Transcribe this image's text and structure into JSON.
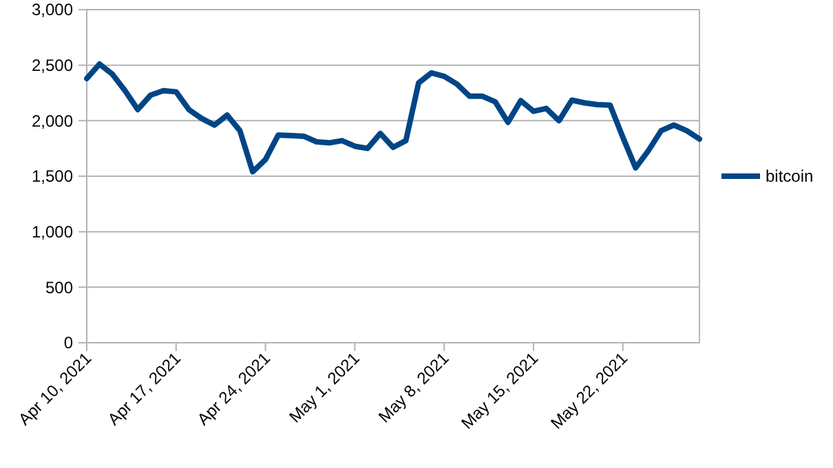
{
  "chart_data": {
    "type": "line",
    "x": [
      "2021-04-10",
      "2021-04-11",
      "2021-04-12",
      "2021-04-13",
      "2021-04-14",
      "2021-04-15",
      "2021-04-16",
      "2021-04-17",
      "2021-04-18",
      "2021-04-19",
      "2021-04-20",
      "2021-04-21",
      "2021-04-22",
      "2021-04-23",
      "2021-04-24",
      "2021-04-25",
      "2021-04-26",
      "2021-04-27",
      "2021-04-28",
      "2021-04-29",
      "2021-04-30",
      "2021-05-01",
      "2021-05-02",
      "2021-05-03",
      "2021-05-04",
      "2021-05-05",
      "2021-05-06",
      "2021-05-07",
      "2021-05-08",
      "2021-05-09",
      "2021-05-10",
      "2021-05-11",
      "2021-05-12",
      "2021-05-13",
      "2021-05-14",
      "2021-05-15",
      "2021-05-16",
      "2021-05-17",
      "2021-05-18",
      "2021-05-19",
      "2021-05-20",
      "2021-05-21",
      "2021-05-22",
      "2021-05-23",
      "2021-05-24",
      "2021-05-25",
      "2021-05-26",
      "2021-05-27",
      "2021-05-28"
    ],
    "series": [
      {
        "name": "bitcoin",
        "color": "#004586",
        "values": [
          2380,
          2510,
          2420,
          2270,
          2100,
          2230,
          2270,
          2260,
          2100,
          2020,
          1960,
          2050,
          1910,
          1540,
          1650,
          1870,
          1865,
          1860,
          1810,
          1800,
          1820,
          1770,
          1750,
          1885,
          1760,
          1820,
          2340,
          2430,
          2400,
          2330,
          2220,
          2220,
          2170,
          1985,
          2180,
          2085,
          2110,
          2000,
          2185,
          2160,
          2145,
          2140,
          1850,
          1575,
          1730,
          1910,
          1960,
          1910,
          1835
        ]
      }
    ],
    "xlim": [
      "2021-04-10",
      "2021-05-28"
    ],
    "xticks": [
      {
        "value": "2021-04-10",
        "label": "Apr 10, 2021"
      },
      {
        "value": "2021-04-17",
        "label": "Apr 17, 2021"
      },
      {
        "value": "2021-04-24",
        "label": "Apr 24, 2021"
      },
      {
        "value": "2021-05-01",
        "label": "May 1, 2021"
      },
      {
        "value": "2021-05-08",
        "label": "May 8, 2021"
      },
      {
        "value": "2021-05-15",
        "label": "May 15, 2021"
      },
      {
        "value": "2021-05-22",
        "label": "May 22, 2021"
      }
    ],
    "ylim": [
      0,
      3000
    ],
    "yticks": [
      {
        "value": 0,
        "label": "0"
      },
      {
        "value": 500,
        "label": "500"
      },
      {
        "value": 1000,
        "label": "1,000"
      },
      {
        "value": 1500,
        "label": "1,500"
      },
      {
        "value": 2000,
        "label": "2,000"
      },
      {
        "value": 2500,
        "label": "2,500"
      },
      {
        "value": 3000,
        "label": "3,000"
      }
    ],
    "grid": "y",
    "legend": "right",
    "marker": "none",
    "line_style": "solid"
  }
}
